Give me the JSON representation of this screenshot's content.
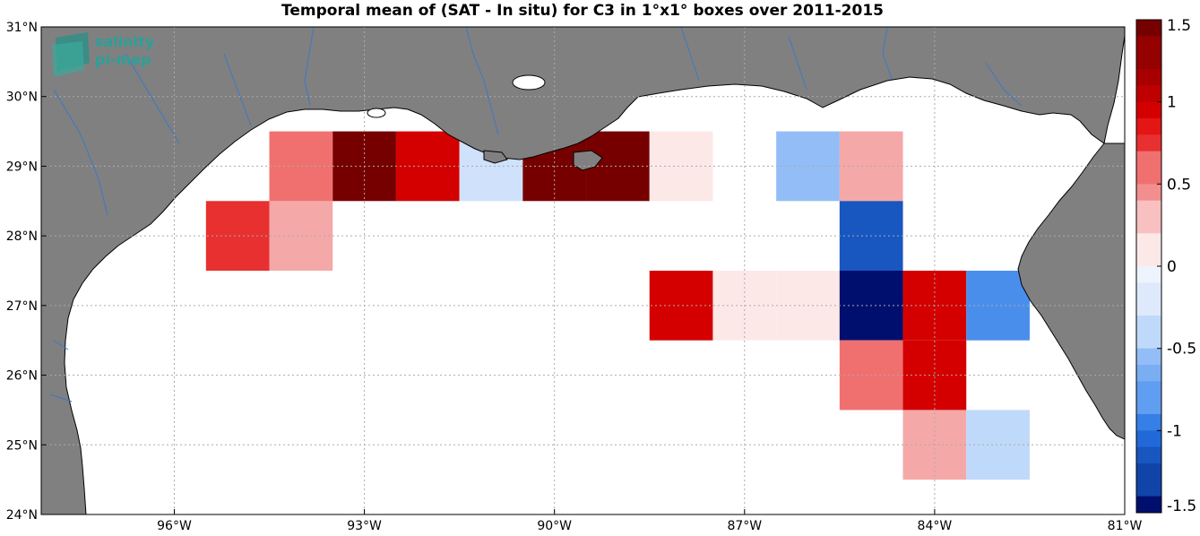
{
  "chart_data": {
    "type": "heatmap",
    "title": "Temporal mean of (SAT - In situ) for C3 in 1°x1° boxes over 2011-2015",
    "x_ticks": [
      {
        "value": -96,
        "label": "96°W"
      },
      {
        "value": -93,
        "label": "93°W"
      },
      {
        "value": -90,
        "label": "90°W"
      },
      {
        "value": -87,
        "label": "87°W"
      },
      {
        "value": -84,
        "label": "84°W"
      },
      {
        "value": -81,
        "label": "81°W"
      }
    ],
    "y_ticks": [
      {
        "value": 24,
        "label": "24°N"
      },
      {
        "value": 25,
        "label": "25°N"
      },
      {
        "value": 26,
        "label": "26°N"
      },
      {
        "value": 27,
        "label": "27°N"
      },
      {
        "value": 28,
        "label": "28°N"
      },
      {
        "value": 29,
        "label": "29°N"
      },
      {
        "value": 30,
        "label": "30°N"
      },
      {
        "value": 31,
        "label": "31°N"
      }
    ],
    "lon_range": [
      -98.1,
      -81
    ],
    "lat_range": [
      24,
      31
    ],
    "grid": true,
    "colorbar": {
      "range": [
        -1.5,
        1.5
      ],
      "steps": 30,
      "ticks": [
        {
          "value": 1.5,
          "label": "1.5"
        },
        {
          "value": 1,
          "label": "1"
        },
        {
          "value": 0.5,
          "label": "0.5"
        },
        {
          "value": 0,
          "label": "0"
        },
        {
          "value": -0.5,
          "label": "-0.5"
        },
        {
          "value": -1,
          "label": "-1"
        },
        {
          "value": -1.5,
          "label": "-1.5"
        }
      ]
    },
    "cells": [
      {
        "lon": -95,
        "lat": 28,
        "value": 0.75
      },
      {
        "lon": -94,
        "lat": 28,
        "value": 0.4
      },
      {
        "lon": -94,
        "lat": 29,
        "value": 0.6
      },
      {
        "lon": -93,
        "lat": 29,
        "value": 1.5
      },
      {
        "lon": -92,
        "lat": 29,
        "value": 1.0
      },
      {
        "lon": -91,
        "lat": 29,
        "value": -0.25
      },
      {
        "lon": -90,
        "lat": 29,
        "value": 1.5
      },
      {
        "lon": -89,
        "lat": 29,
        "value": 1.5
      },
      {
        "lon": -88,
        "lat": 29,
        "value": 0.15
      },
      {
        "lon": -86,
        "lat": 29,
        "value": -0.55
      },
      {
        "lon": -85,
        "lat": 29,
        "value": 0.4
      },
      {
        "lon": -85,
        "lat": 28,
        "value": -1.15
      },
      {
        "lon": -88,
        "lat": 27,
        "value": 1.0
      },
      {
        "lon": -87,
        "lat": 27,
        "value": 0.15
      },
      {
        "lon": -86,
        "lat": 27,
        "value": 0.15
      },
      {
        "lon": -85,
        "lat": 27,
        "value": -1.5
      },
      {
        "lon": -84,
        "lat": 27,
        "value": 1.0
      },
      {
        "lon": -83,
        "lat": 27,
        "value": -0.9
      },
      {
        "lon": -85,
        "lat": 26,
        "value": 0.6
      },
      {
        "lon": -84,
        "lat": 26,
        "value": 1.0
      },
      {
        "lon": -84,
        "lat": 25,
        "value": 0.4
      },
      {
        "lon": -83,
        "lat": 25,
        "value": -0.4
      }
    ]
  },
  "logo": {
    "line1": "salinity",
    "line2": "pi-mep"
  },
  "colors": {
    "land": "#808080",
    "coast": "#000000",
    "river": "#3c78c8",
    "grid": "#aaaaaa",
    "logo_text": "#2aa198",
    "logo_mark": "#2f8f86"
  }
}
